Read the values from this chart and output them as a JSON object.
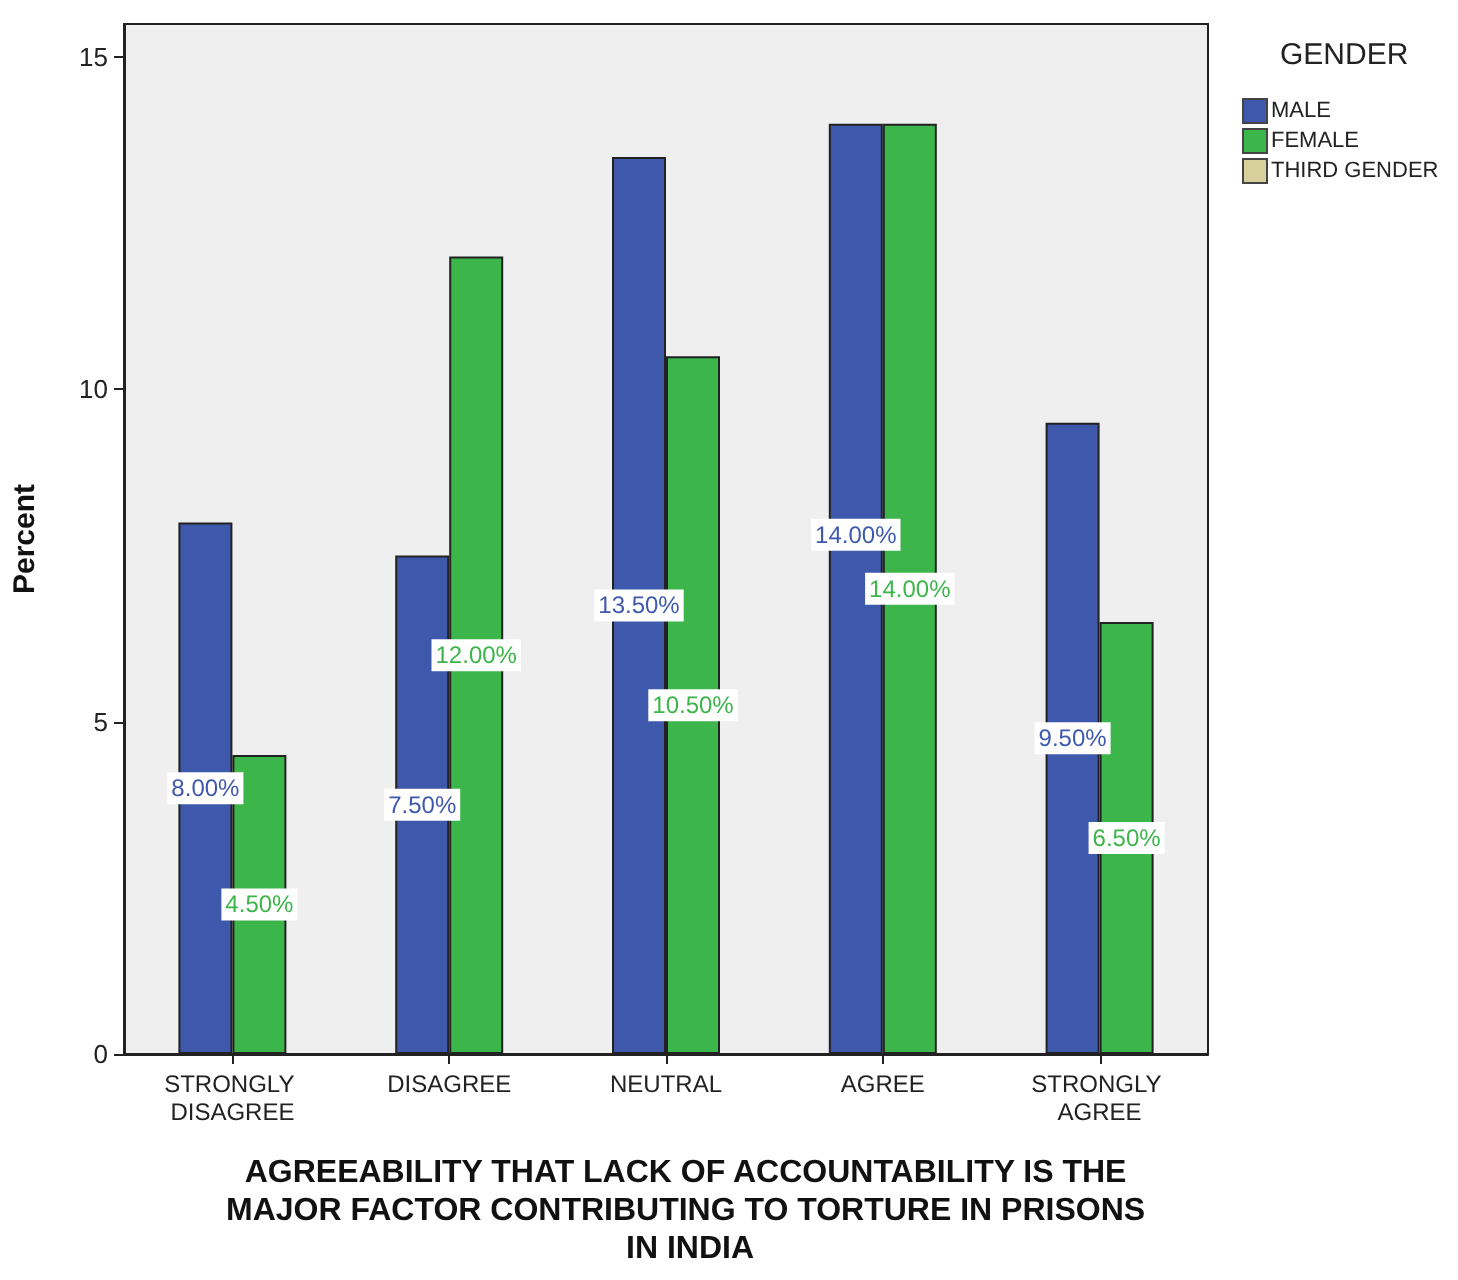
{
  "chart_data": {
    "type": "bar",
    "xlabel": "AGREEABILITY THAT LACK OF ACCOUNTABILITY IS THE MAJOR FACTOR CONTRIBUTING TO TORTURE IN PRISONS IN INDIA",
    "ylabel": "Percent",
    "legend_title": "GENDER",
    "categories": [
      "STRONGLY DISAGREE",
      "DISAGREE",
      "NEUTRAL",
      "AGREE",
      "STRONGLY AGREE"
    ],
    "series": [
      {
        "name": "MALE",
        "color": "#3e58ac",
        "values": [
          8,
          7.5,
          13.5,
          14,
          9.5
        ],
        "value_labels": [
          "8.00%",
          "7.50%",
          "13.50%",
          "14.00%",
          "9.50%"
        ]
      },
      {
        "name": "FEMALE",
        "color": "#3cb54a",
        "values": [
          4.5,
          12,
          10.5,
          14,
          6.5
        ],
        "value_labels": [
          "4.50%",
          "12.00%",
          "10.50%",
          "14.00%",
          "6.50%"
        ]
      },
      {
        "name": "THIRD GENDER",
        "color": "#d8d09c",
        "values": [
          null,
          null,
          null,
          null,
          null
        ]
      }
    ],
    "ylim": [
      0,
      15.5
    ],
    "yticks": [
      0,
      5,
      10,
      15
    ],
    "grid": false,
    "legend": "top right"
  }
}
